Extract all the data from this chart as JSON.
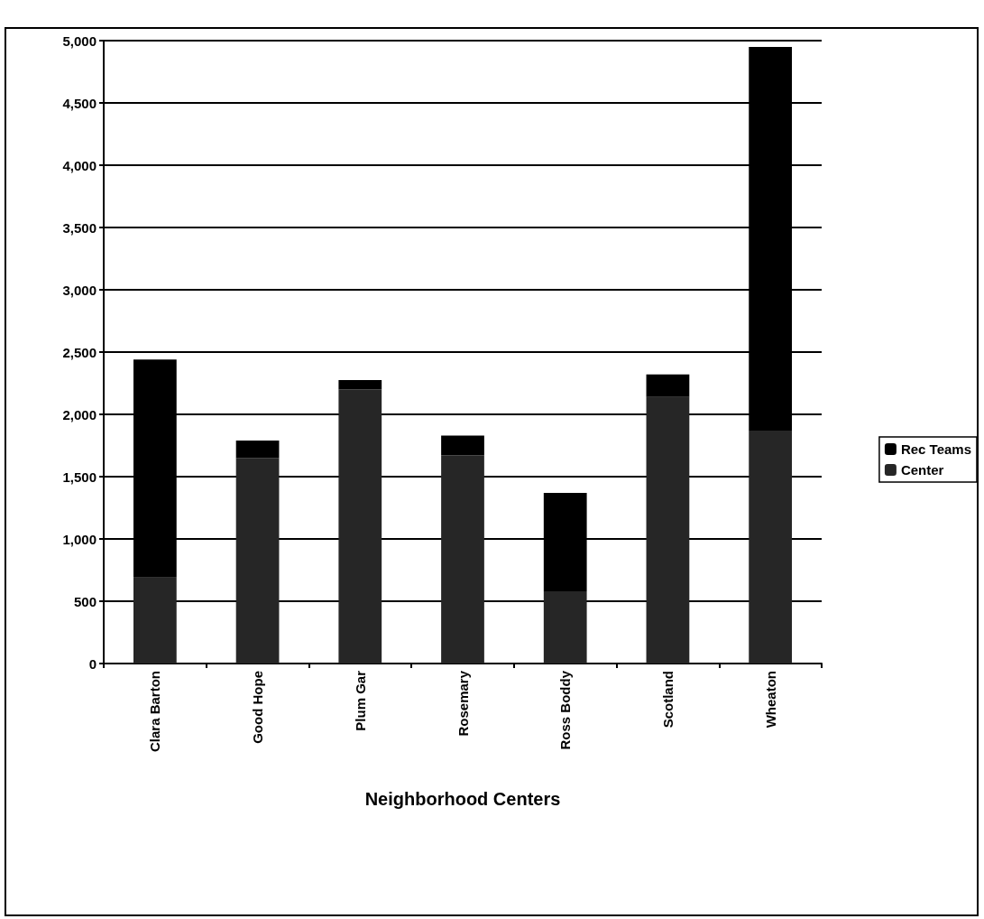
{
  "chart_data": {
    "type": "bar",
    "stacked": true,
    "xlabel": "Neighborhood Centers",
    "categories": [
      "Clara Barton",
      "Good Hope",
      "Plum Gar",
      "Rosemary",
      "Ross Boddy",
      "Scotland",
      "Wheaton"
    ],
    "series": [
      {
        "name": "Center",
        "color": "#262626",
        "values": [
          690,
          1650,
          2200,
          1670,
          580,
          2140,
          1870
        ]
      },
      {
        "name": "Rec Teams",
        "color": "#000000",
        "values": [
          1750,
          140,
          75,
          160,
          790,
          180,
          3080
        ]
      }
    ],
    "ylim": [
      0,
      5000
    ],
    "yticks": [
      {
        "value": 0,
        "label": "0"
      },
      {
        "value": 500,
        "label": "500"
      },
      {
        "value": 1000,
        "label": "1,000"
      },
      {
        "value": 1500,
        "label": "1,500"
      },
      {
        "value": 2000,
        "label": "2,000"
      },
      {
        "value": 2500,
        "label": "2,500"
      },
      {
        "value": 3000,
        "label": "3,000"
      },
      {
        "value": 3500,
        "label": "3,500"
      },
      {
        "value": 4000,
        "label": "4,000"
      },
      {
        "value": 4500,
        "label": "4,500"
      },
      {
        "value": 5000,
        "label": "5,000"
      }
    ],
    "grid": "y",
    "legend": "right"
  }
}
